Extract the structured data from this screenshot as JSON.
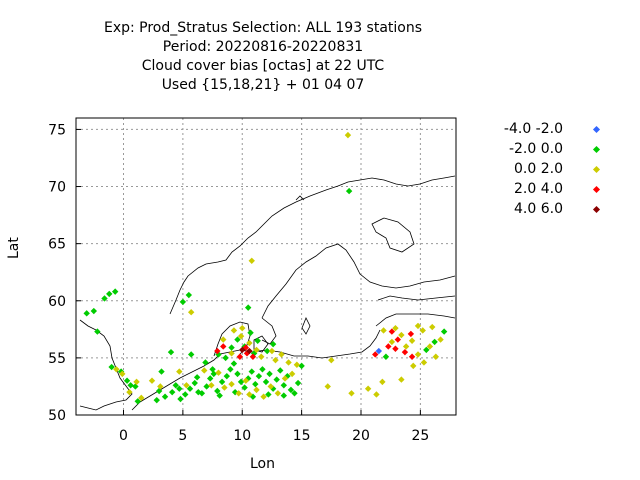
{
  "chart_data": {
    "type": "scatter",
    "title_lines": [
      "Exp: Prod_Stratus   Selection: ALL    193 stations",
      "Period: 20220816-20220831",
      "Cloud cover bias [octas] at  22 UTC",
      "Used {15,18,21} + 01 04 07"
    ],
    "xlabel": "Lon",
    "ylabel": "Lat",
    "xlim": [
      -4,
      28
    ],
    "ylim": [
      50,
      76
    ],
    "xticks": [
      0,
      5,
      10,
      15,
      20,
      25
    ],
    "yticks": [
      50,
      55,
      60,
      65,
      70,
      75
    ],
    "grid": true,
    "legend_position": "right",
    "series": [
      {
        "name": "-4.0 -2.0",
        "color": "#3366ff",
        "points": [
          [
            21.5,
            55.6
          ]
        ]
      },
      {
        "name": "-2.0 0.0",
        "color": "#00cc00",
        "points": [
          [
            -3.1,
            58.9
          ],
          [
            -2.5,
            59.1
          ],
          [
            -1.6,
            60.2
          ],
          [
            -1.2,
            60.6
          ],
          [
            -0.7,
            60.8
          ],
          [
            -2.2,
            57.3
          ],
          [
            -1.0,
            54.2
          ],
          [
            -0.2,
            53.8
          ],
          [
            0.3,
            53.0
          ],
          [
            0.6,
            52.6
          ],
          [
            1.0,
            52.5
          ],
          [
            1.2,
            51.2
          ],
          [
            2.8,
            51.3
          ],
          [
            3.5,
            51.6
          ],
          [
            4.1,
            52.0
          ],
          [
            4.4,
            52.6
          ],
          [
            4.8,
            51.4
          ],
          [
            5.2,
            51.8
          ],
          [
            5.6,
            52.3
          ],
          [
            6.0,
            52.8
          ],
          [
            6.2,
            53.3
          ],
          [
            6.6,
            51.9
          ],
          [
            7.0,
            52.5
          ],
          [
            7.3,
            53.2
          ],
          [
            7.6,
            53.6
          ],
          [
            7.9,
            52.1
          ],
          [
            8.3,
            52.9
          ],
          [
            8.7,
            53.4
          ],
          [
            9.0,
            54.0
          ],
          [
            9.3,
            54.5
          ],
          [
            9.6,
            53.6
          ],
          [
            9.9,
            52.9
          ],
          [
            10.2,
            52.4
          ],
          [
            10.5,
            53.2
          ],
          [
            10.8,
            53.8
          ],
          [
            11.1,
            52.7
          ],
          [
            11.4,
            53.4
          ],
          [
            11.7,
            54.0
          ],
          [
            12.0,
            52.9
          ],
          [
            12.3,
            53.6
          ],
          [
            12.6,
            52.3
          ],
          [
            12.9,
            53.1
          ],
          [
            13.2,
            53.9
          ],
          [
            13.5,
            52.6
          ],
          [
            13.8,
            53.4
          ],
          [
            14.1,
            52.2
          ],
          [
            14.4,
            51.9
          ],
          [
            14.7,
            52.8
          ],
          [
            8.6,
            55.0
          ],
          [
            9.1,
            55.9
          ],
          [
            9.6,
            56.6
          ],
          [
            10.2,
            56.0
          ],
          [
            10.7,
            57.2
          ],
          [
            11.3,
            56.5
          ],
          [
            12.1,
            55.6
          ],
          [
            12.6,
            56.2
          ],
          [
            11.0,
            55.4
          ],
          [
            5.0,
            59.9
          ],
          [
            5.5,
            60.5
          ],
          [
            10.5,
            59.4
          ],
          [
            19.0,
            69.6
          ],
          [
            5.7,
            55.3
          ],
          [
            4.0,
            55.5
          ],
          [
            3.2,
            53.8
          ],
          [
            6.9,
            54.6
          ],
          [
            7.5,
            54.0
          ],
          [
            22.1,
            55.1
          ],
          [
            25.5,
            55.7
          ],
          [
            26.2,
            56.4
          ],
          [
            27.0,
            57.3
          ],
          [
            8.0,
            55.3
          ],
          [
            15.0,
            54.3
          ],
          [
            9.4,
            52.0
          ],
          [
            10.9,
            51.6
          ],
          [
            12.2,
            51.8
          ],
          [
            13.5,
            51.7
          ],
          [
            6.3,
            52.0
          ],
          [
            8.1,
            51.7
          ],
          [
            3.0,
            52.1
          ],
          [
            4.7,
            52.3
          ]
        ]
      },
      {
        "name": "0.0 2.0",
        "color": "#cccc00",
        "points": [
          [
            18.9,
            74.5
          ],
          [
            10.8,
            63.5
          ],
          [
            -0.6,
            54.0
          ],
          [
            -0.1,
            53.6
          ],
          [
            0.5,
            52.0
          ],
          [
            1.1,
            52.9
          ],
          [
            1.5,
            51.5
          ],
          [
            2.4,
            53.0
          ],
          [
            3.1,
            52.5
          ],
          [
            4.7,
            53.8
          ],
          [
            5.3,
            52.6
          ],
          [
            6.8,
            53.9
          ],
          [
            7.4,
            52.6
          ],
          [
            8.0,
            53.7
          ],
          [
            8.5,
            52.4
          ],
          [
            9.1,
            52.7
          ],
          [
            9.7,
            51.9
          ],
          [
            10.3,
            53.0
          ],
          [
            10.6,
            51.8
          ],
          [
            11.2,
            52.2
          ],
          [
            11.8,
            51.6
          ],
          [
            12.4,
            52.5
          ],
          [
            13.0,
            51.9
          ],
          [
            13.6,
            53.2
          ],
          [
            14.2,
            53.6
          ],
          [
            14.6,
            54.4
          ],
          [
            13.9,
            54.6
          ],
          [
            12.8,
            54.8
          ],
          [
            11.6,
            55.1
          ],
          [
            11.2,
            55.7
          ],
          [
            10.6,
            56.3
          ],
          [
            9.9,
            56.9
          ],
          [
            9.3,
            57.4
          ],
          [
            8.4,
            56.6
          ],
          [
            10.0,
            57.6
          ],
          [
            5.7,
            59.0
          ],
          [
            17.2,
            52.5
          ],
          [
            17.5,
            54.8
          ],
          [
            19.2,
            51.9
          ],
          [
            20.6,
            52.3
          ],
          [
            21.3,
            51.8
          ],
          [
            21.8,
            52.9
          ],
          [
            21.9,
            57.4
          ],
          [
            22.6,
            56.4
          ],
          [
            23.4,
            57.0
          ],
          [
            24.3,
            56.5
          ],
          [
            24.8,
            55.3
          ],
          [
            25.3,
            54.6
          ],
          [
            26.3,
            55.1
          ],
          [
            25.8,
            56.0
          ],
          [
            26.7,
            56.6
          ],
          [
            26.0,
            57.7
          ],
          [
            24.8,
            57.8
          ],
          [
            23.8,
            56.0
          ],
          [
            22.9,
            57.6
          ],
          [
            25.2,
            57.4
          ],
          [
            24.4,
            54.3
          ],
          [
            23.4,
            53.1
          ],
          [
            12.5,
            55.6
          ],
          [
            13.3,
            55.3
          ],
          [
            9.1,
            55.4
          ]
        ]
      },
      {
        "name": "2.0 4.0",
        "color": "#ff0000",
        "points": [
          [
            7.9,
            55.6
          ],
          [
            8.4,
            56.0
          ],
          [
            9.8,
            55.1
          ],
          [
            10.4,
            55.4
          ],
          [
            10.9,
            55.1
          ],
          [
            10.3,
            55.9
          ],
          [
            21.2,
            55.3
          ],
          [
            22.3,
            56.0
          ],
          [
            22.6,
            57.3
          ],
          [
            23.1,
            56.6
          ],
          [
            23.7,
            55.5
          ],
          [
            24.2,
            57.1
          ],
          [
            24.3,
            55.1
          ],
          [
            22.9,
            55.8
          ]
        ]
      },
      {
        "name": "4.0 6.0",
        "color": "#8b0000",
        "points": [
          [
            10.0,
            55.7
          ],
          [
            10.6,
            55.6
          ]
        ]
      }
    ]
  }
}
